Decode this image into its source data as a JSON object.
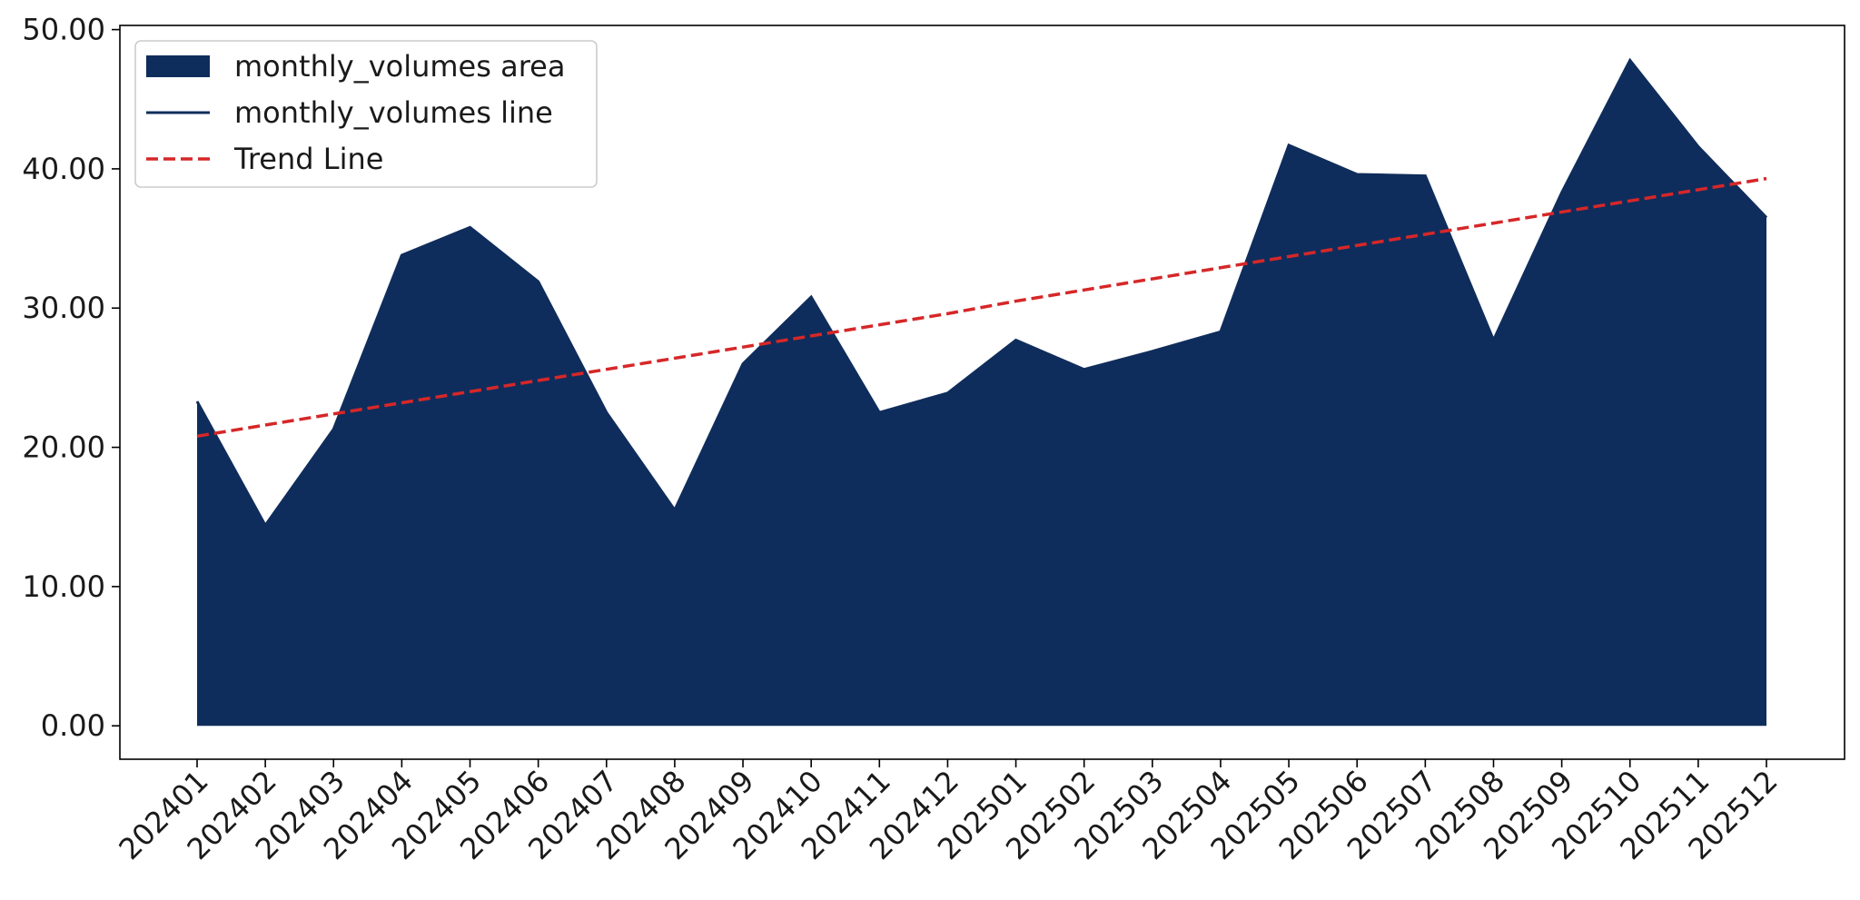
{
  "chart_data": {
    "type": "area",
    "title": "",
    "xlabel": "",
    "ylabel": "",
    "categories": [
      "202401",
      "202402",
      "202403",
      "202404",
      "202405",
      "202406",
      "202407",
      "202408",
      "202409",
      "202410",
      "202411",
      "202412",
      "202501",
      "202502",
      "202503",
      "202504",
      "202505",
      "202506",
      "202507",
      "202508",
      "202509",
      "202510",
      "202511",
      "202512"
    ],
    "series": [
      {
        "name": "monthly_volumes area",
        "kind": "area",
        "color": "#0f2d5c",
        "values": [
          23.3,
          14.4,
          21.3,
          33.8,
          35.8,
          31.9,
          22.5,
          15.5,
          26.0,
          30.8,
          22.5,
          23.9,
          27.7,
          25.6,
          26.9,
          28.3,
          41.7,
          39.6,
          39.5,
          27.7,
          38.3,
          47.8,
          41.6,
          36.5
        ]
      },
      {
        "name": "monthly_volumes line",
        "kind": "line",
        "color": "#0f2d5c",
        "values": [
          23.3,
          14.4,
          21.3,
          33.8,
          35.8,
          31.9,
          22.5,
          15.5,
          26.0,
          30.8,
          22.5,
          23.9,
          27.7,
          25.6,
          26.9,
          28.3,
          41.7,
          39.6,
          39.5,
          27.7,
          38.3,
          47.8,
          41.6,
          36.5
        ]
      },
      {
        "name": "Trend Line",
        "kind": "dashed-line",
        "color": "#d62728",
        "values": [
          20.8,
          21.6,
          22.4,
          23.2,
          24.0,
          24.8,
          25.6,
          26.4,
          27.2,
          28.0,
          28.8,
          29.6,
          30.5,
          31.3,
          32.1,
          32.9,
          33.7,
          34.5,
          35.3,
          36.1,
          36.9,
          37.7,
          38.5,
          39.3
        ]
      }
    ],
    "ylim": [
      -2.4,
      50.3
    ],
    "yticks": [
      0,
      10,
      20,
      30,
      40,
      50
    ],
    "ytick_labels": [
      "0.00",
      "10.00",
      "20.00",
      "30.00",
      "40.00",
      "50.00"
    ],
    "grid": false,
    "legend_position": "top-left"
  }
}
